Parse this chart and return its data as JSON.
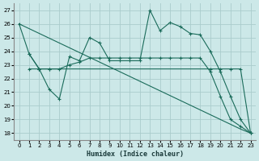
{
  "xlabel": "Humidex (Indice chaleur)",
  "background_color": "#cce8e8",
  "grid_color": "#aacccc",
  "line_color": "#1a6b5a",
  "xlim": [
    -0.5,
    23.5
  ],
  "ylim": [
    17.5,
    27.5
  ],
  "yticks": [
    18,
    19,
    20,
    21,
    22,
    23,
    24,
    25,
    26,
    27
  ],
  "xticks": [
    0,
    1,
    2,
    3,
    4,
    5,
    6,
    7,
    8,
    9,
    10,
    11,
    12,
    13,
    14,
    15,
    16,
    17,
    18,
    19,
    20,
    21,
    22,
    23
  ],
  "line1_x": [
    0,
    1,
    2,
    3,
    4,
    5,
    6,
    7,
    8,
    9,
    10,
    11,
    12,
    13,
    14,
    15,
    16,
    17,
    18,
    19,
    20,
    21,
    22,
    23
  ],
  "line1_y": [
    26.0,
    23.8,
    22.7,
    21.2,
    20.5,
    23.6,
    23.3,
    25.0,
    24.6,
    23.3,
    23.3,
    23.3,
    23.3,
    27.0,
    25.5,
    26.1,
    25.8,
    25.3,
    25.2,
    24.0,
    22.5,
    20.7,
    19.0,
    18.0
  ],
  "line2_x": [
    1,
    2,
    3,
    4,
    5,
    6,
    7,
    8,
    9,
    10,
    11,
    12,
    13,
    14,
    15,
    16,
    17,
    18,
    19,
    20,
    21,
    22,
    23
  ],
  "line2_y": [
    23.8,
    22.7,
    22.7,
    22.7,
    23.0,
    23.2,
    23.5,
    23.5,
    23.5,
    23.5,
    23.5,
    23.5,
    23.5,
    23.5,
    23.5,
    23.5,
    23.5,
    23.5,
    22.5,
    20.7,
    19.0,
    18.5,
    18.0
  ],
  "line3_x": [
    1,
    2,
    3,
    19,
    20,
    21,
    22,
    23
  ],
  "line3_y": [
    22.7,
    22.7,
    22.7,
    22.7,
    22.7,
    22.7,
    22.7,
    18.0
  ],
  "line4_x": [
    0,
    1,
    2,
    3,
    4,
    5,
    6,
    7,
    8,
    9,
    10,
    11,
    12,
    13,
    14,
    15,
    16,
    17,
    18,
    19,
    20,
    21,
    22,
    23
  ],
  "line4_y": [
    26.0,
    25.65,
    25.3,
    24.95,
    24.6,
    24.25,
    23.9,
    23.55,
    23.2,
    22.85,
    22.5,
    22.15,
    21.8,
    21.45,
    21.1,
    20.75,
    20.4,
    20.05,
    19.7,
    19.35,
    19.0,
    18.65,
    18.3,
    18.0
  ]
}
